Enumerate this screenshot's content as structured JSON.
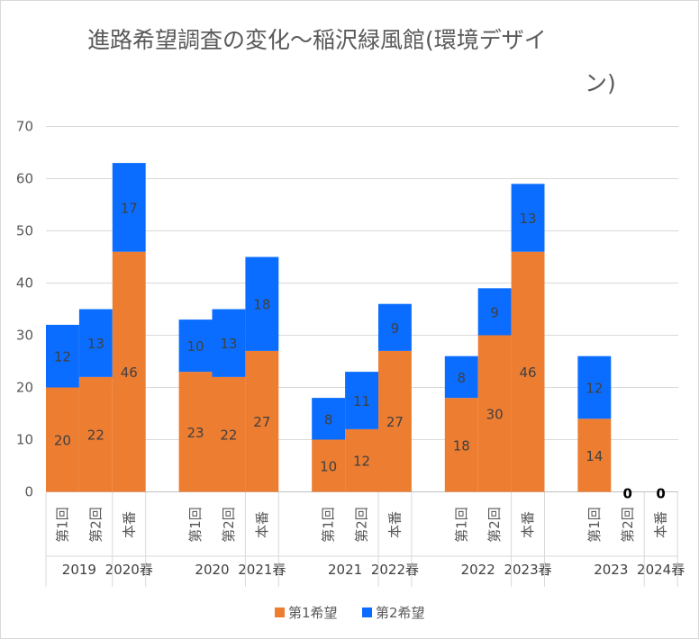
{
  "chart_data": {
    "type": "bar",
    "stacked": true,
    "title_lines": [
      "進路希望調査の変化～稲沢緑風館(環境デザイ",
      "ン)"
    ],
    "ylim": [
      0,
      70
    ],
    "y_ticks": [
      0,
      10,
      20,
      30,
      40,
      50,
      60,
      70
    ],
    "gridlines": true,
    "legend_position": "bottom",
    "colors": {
      "第1希望": "#ED7D31",
      "第2希望": "#0A6DFF",
      "grid": "#D9D9D9",
      "axis": "#BFBFBF"
    },
    "groups": [
      {
        "year": "2019",
        "spring": "2020春",
        "categories": [
          "第1回",
          "第2回",
          "本番"
        ]
      },
      {
        "year": "2020",
        "spring": "2021春",
        "categories": [
          "第1回",
          "第2回",
          "本番"
        ]
      },
      {
        "year": "2021",
        "spring": "2022春",
        "categories": [
          "第1回",
          "第2回",
          "本番"
        ]
      },
      {
        "year": "2022",
        "spring": "2023春",
        "categories": [
          "第1回",
          "第2回",
          "本番"
        ]
      },
      {
        "year": "2023",
        "spring": "2024春",
        "categories": [
          "第1回",
          "第2回",
          "本番"
        ]
      }
    ],
    "series": [
      {
        "name": "第1希望",
        "color": "#ED7D31",
        "values": [
          20,
          22,
          46,
          23,
          22,
          27,
          10,
          12,
          27,
          18,
          30,
          46,
          14,
          0,
          0
        ]
      },
      {
        "name": "第2希望",
        "color": "#0A6DFF",
        "values": [
          12,
          13,
          17,
          10,
          13,
          18,
          8,
          11,
          9,
          8,
          9,
          13,
          12,
          0,
          0
        ]
      }
    ]
  }
}
